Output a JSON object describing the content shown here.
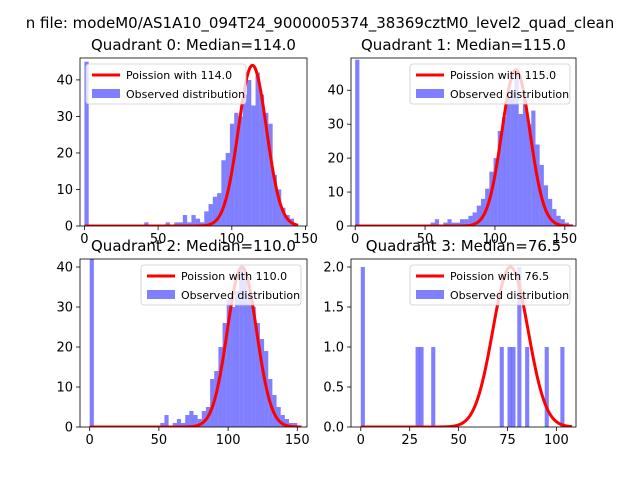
{
  "figure": {
    "suptitle": "n file: modeM0/AS1A10_094T24_9000005374_38369cztM0_level2_quad_clean"
  },
  "chart_data": [
    {
      "type": "bar",
      "title": "Quadrant 0: Median=114.0",
      "xlim": [
        -3,
        151
      ],
      "ylim": [
        0,
        46
      ],
      "xticks": [
        0,
        50,
        100,
        150
      ],
      "yticks": [
        0,
        10,
        20,
        30,
        40
      ],
      "bin_width": 2.9,
      "legend": {
        "placement": "top-left",
        "line_label": "Poission with 114.0",
        "bar_label": "Observed distribution"
      },
      "line": {
        "name": "Poission with 114.0",
        "color": "#ff0000",
        "mean": 114.0,
        "peak": 44,
        "sigma": 9.5
      },
      "hist": {
        "x": [
          0,
          40.6,
          55.1,
          61.0,
          63.9,
          66.8,
          69.7,
          72.6,
          75.5,
          78.4,
          81.3,
          84.2,
          87.1,
          90.0,
          92.9,
          95.8,
          98.7,
          101.6,
          104.5,
          107.4,
          110.3,
          113.2,
          116.1,
          119.0,
          121.9,
          124.8,
          127.7,
          130.6,
          133.5,
          136.4,
          139.3
        ],
        "values": [
          45,
          1,
          1,
          1,
          1,
          3,
          1,
          3,
          2,
          1,
          4,
          6,
          8,
          9,
          18,
          20,
          28,
          31,
          30,
          36,
          40,
          33,
          42,
          36,
          31,
          28,
          14,
          10,
          5,
          3,
          2
        ]
      }
    },
    {
      "type": "bar",
      "title": "Quadrant 1: Median=115.0",
      "xlim": [
        -3,
        158
      ],
      "ylim": [
        0,
        49.5
      ],
      "xticks": [
        0,
        50,
        100,
        150
      ],
      "yticks": [
        0,
        10,
        20,
        30,
        40
      ],
      "bin_width": 3.0,
      "legend": {
        "placement": "top-right",
        "line_label": "Poission with 115.0",
        "bar_label": "Observed distribution"
      },
      "line": {
        "name": "Poission with 115.0",
        "color": "#ff0000",
        "mean": 115.0,
        "peak": 46,
        "sigma": 10.0
      },
      "hist": {
        "x": [
          0,
          54,
          57,
          63,
          66,
          69,
          72,
          75,
          78,
          81,
          84,
          87,
          90,
          93,
          96,
          99,
          102,
          105,
          108,
          111,
          114,
          117,
          120,
          123,
          126,
          129,
          132,
          135,
          138,
          141,
          144,
          147,
          150
        ],
        "values": [
          49,
          1,
          2,
          1,
          2,
          1,
          1,
          2,
          2,
          3,
          4,
          6,
          8,
          11,
          16,
          20,
          28,
          32,
          38,
          40,
          46,
          33,
          38,
          30,
          34,
          24,
          18,
          12,
          8,
          5,
          3,
          2,
          1
        ]
      }
    },
    {
      "type": "bar",
      "title": "Quadrant 2: Median=110.0",
      "xlim": [
        -7,
        157
      ],
      "ylim": [
        0,
        42
      ],
      "xticks": [
        0,
        50,
        100,
        150
      ],
      "yticks": [
        0,
        10,
        20,
        30,
        40
      ],
      "bin_width": 3.0,
      "legend": {
        "placement": "top-right",
        "line_label": "Poission with 110.0",
        "bar_label": "Observed distribution"
      },
      "line": {
        "name": "Poission with 110.0",
        "color": "#ff0000",
        "mean": 110.0,
        "peak": 40,
        "sigma": 10.5
      },
      "hist": {
        "x": [
          0,
          51,
          54,
          60,
          63,
          66,
          69,
          72,
          75,
          78,
          81,
          84,
          87,
          90,
          93,
          96,
          99,
          102,
          105,
          108,
          111,
          114,
          117,
          120,
          123,
          126,
          129,
          132,
          135,
          138,
          141,
          144,
          147
        ],
        "values": [
          42,
          1,
          3,
          1,
          2,
          1,
          3,
          4,
          3,
          2,
          4,
          5,
          12,
          14,
          20,
          26,
          32,
          30,
          34,
          40,
          38,
          33,
          30,
          26,
          22,
          19,
          12,
          8,
          5,
          3,
          2,
          1,
          1
        ]
      }
    },
    {
      "type": "bar",
      "title": "Quadrant 3: Median=76.5",
      "xlim": [
        -5,
        110
      ],
      "ylim": [
        0,
        2.1
      ],
      "xticks": [
        0,
        25,
        50,
        75,
        100
      ],
      "yticks": [
        0.0,
        0.5,
        1.0,
        1.5,
        2.0
      ],
      "bin_width": 2.1,
      "legend": {
        "placement": "top-right",
        "line_label": "Poission with 76.5",
        "bar_label": "Observed distribution"
      },
      "line": {
        "name": "Poission with 76.5",
        "color": "#ff0000",
        "mean": 76.5,
        "peak": 2.0,
        "sigma": 9.0
      },
      "hist": {
        "x": [
          0,
          28,
          30,
          36,
          71,
          75,
          77,
          80,
          84,
          94,
          102
        ],
        "values": [
          2,
          1,
          1,
          1,
          1,
          1,
          1,
          2,
          1,
          1,
          1
        ]
      }
    }
  ]
}
